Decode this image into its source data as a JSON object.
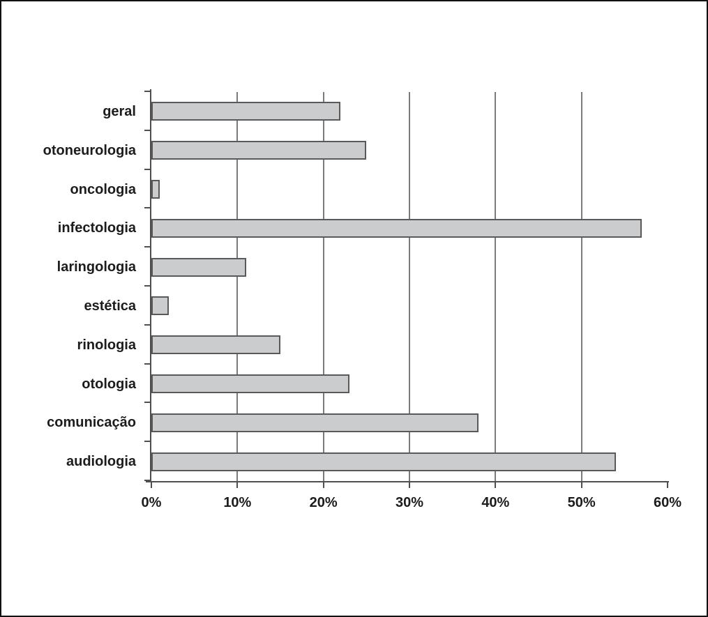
{
  "chart_data": {
    "type": "bar",
    "orientation": "horizontal",
    "title": "",
    "categories": [
      "geral",
      "otoneurologia",
      "oncologia",
      "infectologia",
      "laringologia",
      "estética",
      "rinologia",
      "otologia",
      "comunicação",
      "audiologia"
    ],
    "values": [
      22,
      25,
      1,
      57,
      11,
      2,
      15,
      23,
      38,
      54
    ],
    "value_unit": "%",
    "xlim": [
      0,
      60
    ],
    "x_tick_step": 10,
    "x_tick_labels": [
      "0%",
      "10%",
      "20%",
      "30%",
      "40%",
      "50%",
      "60%"
    ],
    "legend": "none",
    "grid": "vertical-gridlines-every-10-percent",
    "colors": {
      "bar_fill": "#cbcccd",
      "bar_border": "#58595b",
      "gridline": "#7b7b7b",
      "axis": "#4f4f4f",
      "text": "#1c1c1c",
      "frame_border": "#111111",
      "background": "#ffffff"
    }
  }
}
